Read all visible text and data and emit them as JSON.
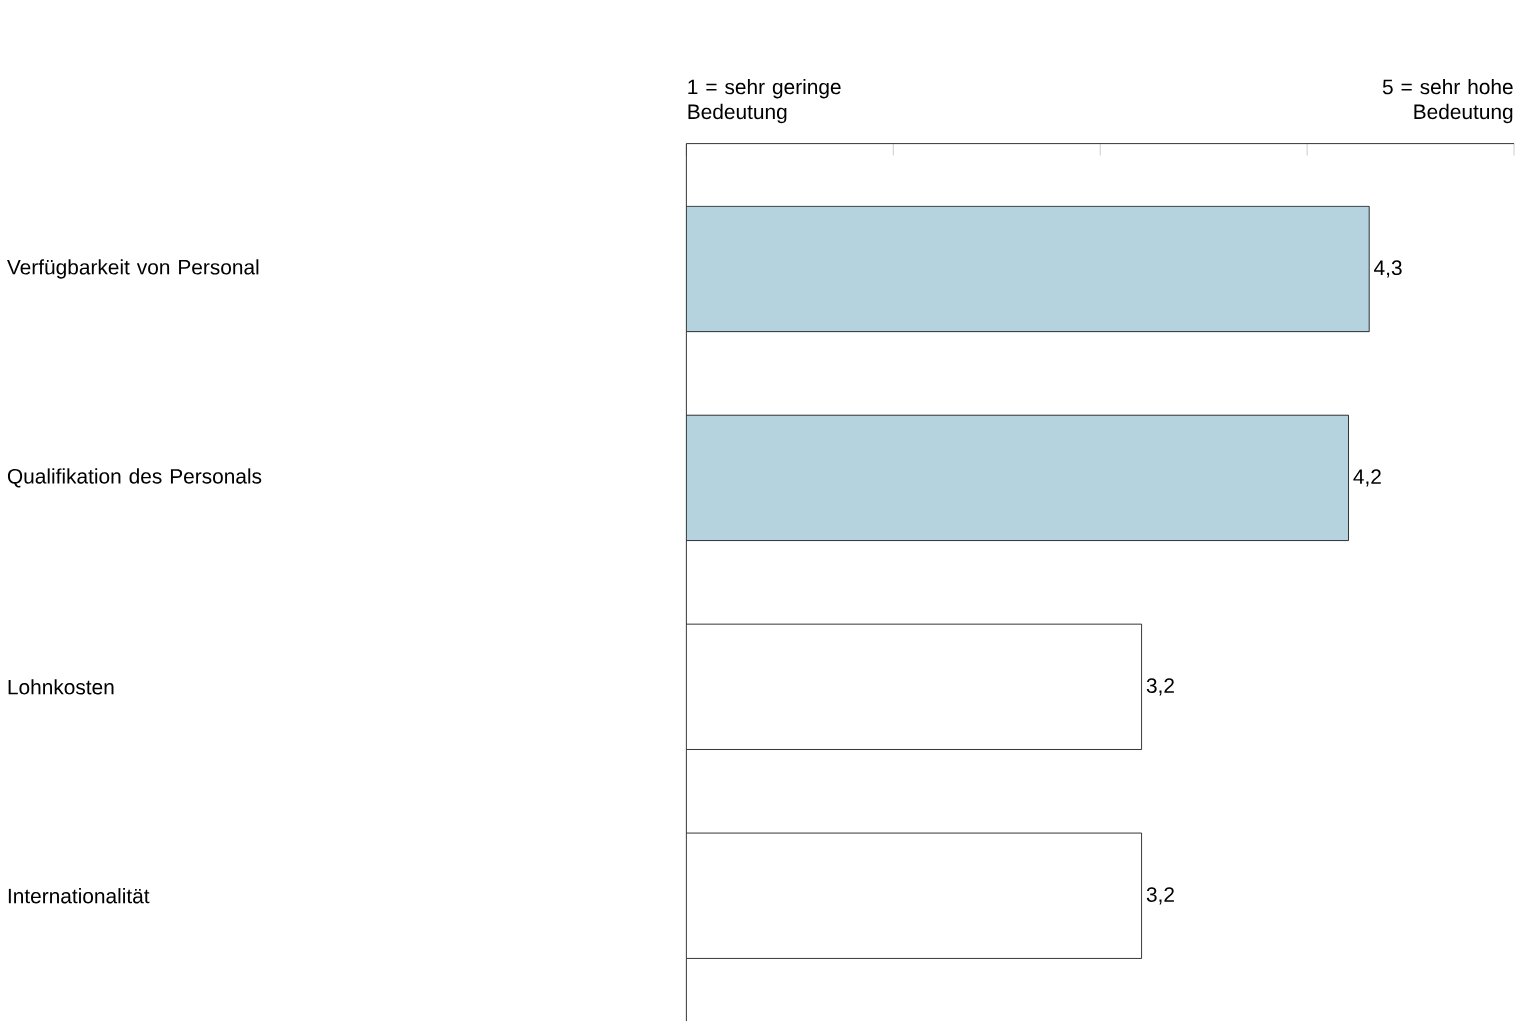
{
  "chart_data": {
    "type": "bar",
    "orientation": "horizontal",
    "categories": [
      "Verfügbarkeit von Personal",
      "Qualifikation des Personals",
      "Lohnkosten",
      "Internationalität"
    ],
    "values": [
      4.3,
      4.2,
      3.2,
      3.2
    ],
    "colors": [
      "#b4d3de",
      "#b4d3de",
      "#ffffff",
      "#ffffff"
    ],
    "value_labels": [
      "4,3",
      "4,2",
      "3,2",
      "3,2"
    ],
    "xlim": [
      1,
      5
    ],
    "xticks": [
      {
        "value": 1,
        "label": null
      },
      {
        "value": 2,
        "label": null
      },
      {
        "value": 3,
        "label": null
      },
      {
        "value": 4,
        "label": null
      },
      {
        "value": 5,
        "label": null
      }
    ],
    "tick_labels": "y",
    "annotations": [
      "1 = sehr geringe Bedeutung",
      "5 = sehr hohe Bedeutung"
    ]
  }
}
